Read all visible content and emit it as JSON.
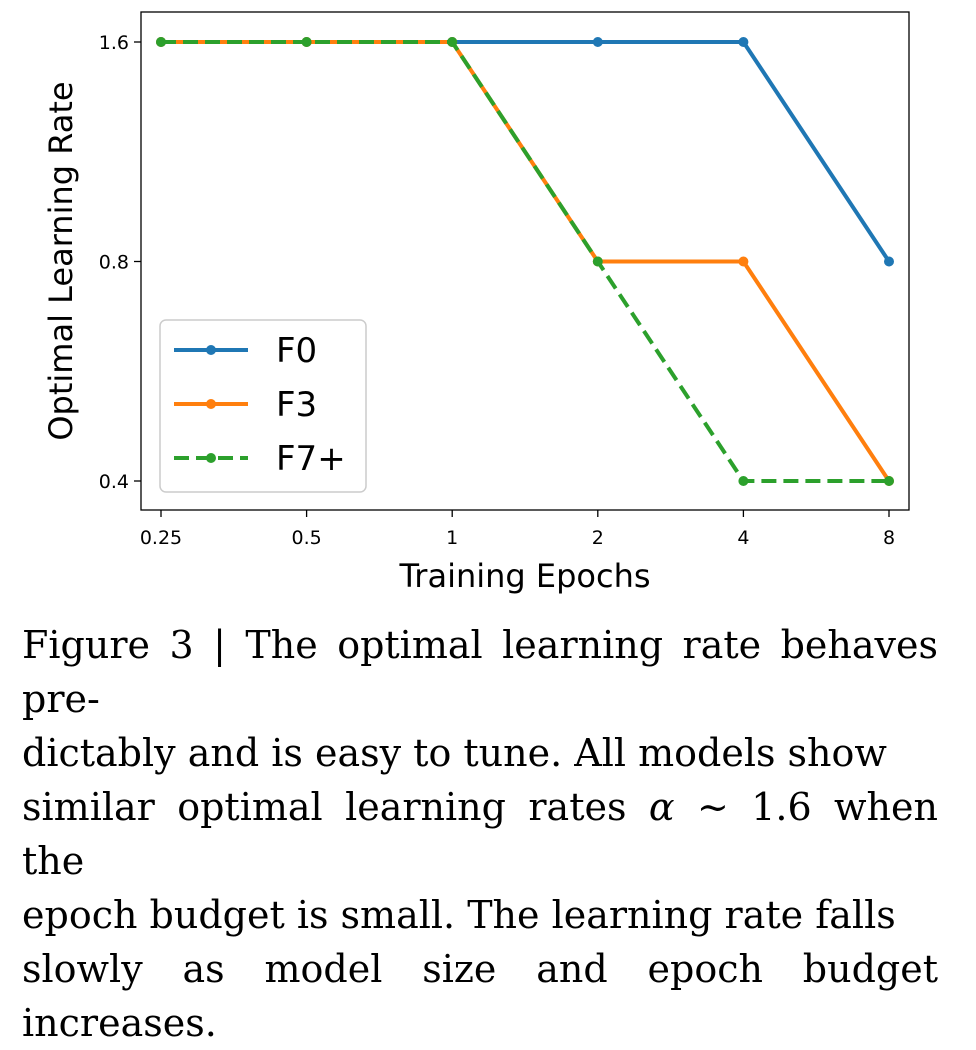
{
  "chart_data": {
    "type": "line",
    "xlabel": "Training Epochs",
    "ylabel": "Optimal Learning Rate",
    "x_categories": [
      "0.25",
      "0.5",
      "1",
      "2",
      "4",
      "8"
    ],
    "x_scale": "log2",
    "y_scale": "log2",
    "ylim": [
      0.36,
      1.8
    ],
    "yticks": [
      0.4,
      0.8,
      1.6
    ],
    "ytick_labels": [
      "0.4",
      "0.8",
      "1.6"
    ],
    "grid": false,
    "legend_position": "lower-left",
    "series": [
      {
        "name": "F0",
        "color": "#1f77b4",
        "dashed": false,
        "values": [
          1.6,
          1.6,
          1.6,
          1.6,
          1.6,
          0.8
        ]
      },
      {
        "name": "F3",
        "color": "#ff7f0e",
        "dashed": false,
        "values": [
          1.6,
          1.6,
          1.6,
          0.8,
          0.8,
          0.4
        ]
      },
      {
        "name": "F7+",
        "color": "#2ca02c",
        "dashed": true,
        "values": [
          1.6,
          1.6,
          1.6,
          0.8,
          0.4,
          0.4
        ]
      }
    ]
  },
  "caption": {
    "lines": [
      "Figure 3 | The optimal learning rate behaves pre-",
      "dictably and is easy to tune. All models show",
      "similar optimal learning rates "
    ],
    "alpha_symbol": "α",
    "line3_tail": " ∼ 1.6 when the",
    "line4": "epoch budget is small. The learning rate falls",
    "line5": "slowly as model size and epoch budget increases."
  }
}
